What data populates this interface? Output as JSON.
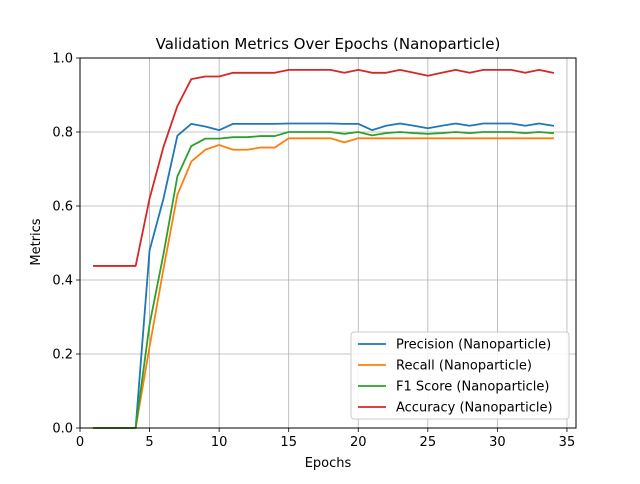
{
  "chart_data": {
    "type": "line",
    "title": "Validation Metrics Over Epochs (Nanoparticle)",
    "xlabel": "Epochs",
    "ylabel": "Metrics",
    "xlim": [
      0,
      35.65
    ],
    "ylim": [
      0,
      1.0
    ],
    "xticks": [
      0,
      5,
      10,
      15,
      20,
      25,
      30,
      35
    ],
    "yticks": [
      0.0,
      0.2,
      0.4,
      0.6,
      0.8,
      1.0
    ],
    "xtick_labels": [
      "0",
      "5",
      "10",
      "15",
      "20",
      "25",
      "30",
      "35"
    ],
    "ytick_labels": [
      "0.0",
      "0.2",
      "0.4",
      "0.6",
      "0.8",
      "1.0"
    ],
    "grid": true,
    "legend_position": "lower-right",
    "x": [
      1,
      2,
      3,
      4,
      5,
      6,
      7,
      8,
      9,
      10,
      11,
      12,
      13,
      14,
      15,
      16,
      17,
      18,
      19,
      20,
      21,
      22,
      23,
      24,
      25,
      26,
      27,
      28,
      29,
      30,
      31,
      32,
      33,
      34
    ],
    "series": [
      {
        "name": "Precision (Nanoparticle)",
        "color": "#1f77b4",
        "values": [
          0,
          0,
          0,
          0,
          0.48,
          0.62,
          0.79,
          0.822,
          0.815,
          0.805,
          0.822,
          0.822,
          0.822,
          0.822,
          0.823,
          0.823,
          0.823,
          0.823,
          0.822,
          0.822,
          0.805,
          0.817,
          0.823,
          0.817,
          0.81,
          0.817,
          0.823,
          0.817,
          0.823,
          0.823,
          0.823,
          0.817,
          0.823,
          0.817
        ]
      },
      {
        "name": "Recall (Nanoparticle)",
        "color": "#ff7f0e",
        "values": [
          0,
          0,
          0,
          0,
          0.22,
          0.43,
          0.63,
          0.72,
          0.752,
          0.765,
          0.752,
          0.752,
          0.758,
          0.758,
          0.783,
          0.783,
          0.783,
          0.783,
          0.772,
          0.783,
          0.783,
          0.783,
          0.783,
          0.783,
          0.783,
          0.783,
          0.783,
          0.783,
          0.783,
          0.783,
          0.783,
          0.783,
          0.783,
          0.783
        ]
      },
      {
        "name": "F1 Score (Nanoparticle)",
        "color": "#2ca02c",
        "values": [
          0,
          0,
          0,
          0,
          0.28,
          0.47,
          0.68,
          0.762,
          0.782,
          0.782,
          0.786,
          0.786,
          0.789,
          0.789,
          0.8,
          0.8,
          0.8,
          0.8,
          0.795,
          0.8,
          0.791,
          0.797,
          0.8,
          0.797,
          0.795,
          0.797,
          0.8,
          0.797,
          0.8,
          0.8,
          0.8,
          0.797,
          0.8,
          0.797
        ]
      },
      {
        "name": "Accuracy (Nanoparticle)",
        "color": "#d62728",
        "values": [
          0.438,
          0.438,
          0.438,
          0.438,
          0.62,
          0.76,
          0.87,
          0.943,
          0.95,
          0.95,
          0.96,
          0.96,
          0.96,
          0.96,
          0.968,
          0.968,
          0.968,
          0.968,
          0.96,
          0.968,
          0.96,
          0.96,
          0.968,
          0.96,
          0.952,
          0.96,
          0.968,
          0.96,
          0.968,
          0.968,
          0.968,
          0.96,
          0.968,
          0.96
        ]
      }
    ]
  }
}
